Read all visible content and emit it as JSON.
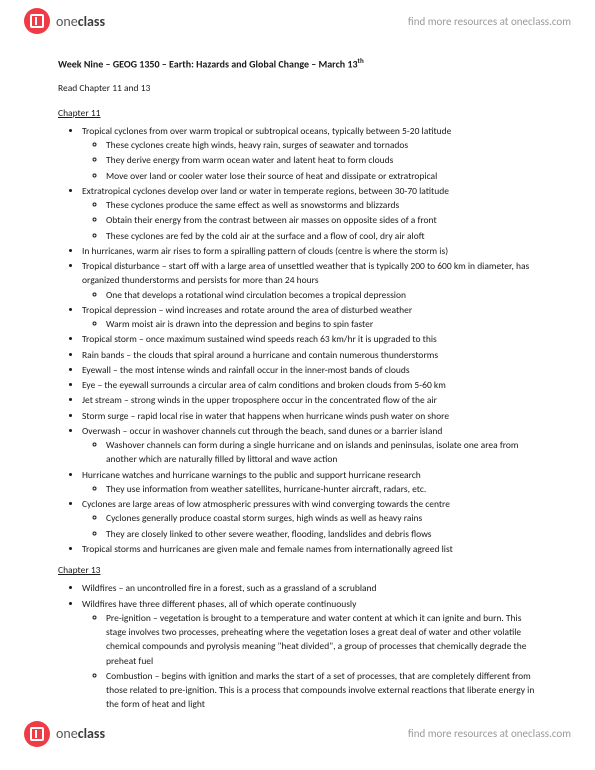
{
  "brand_prefix": "one",
  "brand_suffix": "class",
  "tagline": "find more resources at oneclass.com",
  "title_line": "Week Nine – GEOG 1350 – Earth: Hazards and Global Change – March 13",
  "title_suffix": "th",
  "instruction": "Read Chapter 11 and 13",
  "chapter11_label": "Chapter 11",
  "chapter13_label": "Chapter 13",
  "ch11": [
    {
      "text": "Tropical cyclones from over warm tropical or subtropical oceans, typically between 5-20 latitude",
      "sub": [
        "These cyclones create high winds, heavy rain, surges of seawater and tornados",
        "They derive energy from warm ocean water and latent heat to form clouds",
        "Move over land or cooler water lose their source of heat and dissipate or extratropical"
      ]
    },
    {
      "text": "Extratropical cyclones develop over land or water in temperate regions, between 30-70 latitude",
      "sub": [
        "These cyclones produce the same effect as well as snowstorms and blizzards",
        "Obtain their energy from the contrast between air masses on opposite sides of a front",
        "These cyclones are fed by the cold air at the surface and a flow of cool, dry air aloft"
      ]
    },
    {
      "text": "In hurricanes, warm air rises to form a spiralling pattern of clouds (centre is where the storm is)"
    },
    {
      "text": "Tropical disturbance – start off with a large area of unsettled weather that is typically 200 to 600 km in diameter, has organized thunderstorms and persists for more than 24 hours",
      "sub": [
        "One that develops a rotational wind circulation becomes a tropical depression"
      ]
    },
    {
      "text": "Tropical depression – wind increases and rotate around the area of disturbed weather",
      "sub": [
        "Warm moist air is drawn into the depression and begins to spin faster"
      ]
    },
    {
      "text": "Tropical storm – once maximum sustained wind speeds reach 63 km/hr it is upgraded to this"
    },
    {
      "text": "Rain bands – the clouds that spiral around a hurricane and contain numerous thunderstorms"
    },
    {
      "text": "Eyewall – the most intense winds and rainfall occur in the inner-most bands of clouds"
    },
    {
      "text": "Eye – the eyewall surrounds a circular area of calm conditions and broken clouds from 5-60 km"
    },
    {
      "text": "Jet stream – strong winds in the upper troposphere occur in the concentrated flow of the air"
    },
    {
      "text": "Storm surge – rapid local rise in water that happens when hurricane winds push water on shore"
    },
    {
      "text": "Overwash – occur in washover channels cut through the beach, sand dunes or a barrier island",
      "sub": [
        "Washover channels can form during a single hurricane and on islands and peninsulas, isolate one area from another which are naturally filled by littoral and wave action"
      ]
    },
    {
      "text": "Hurricane watches and hurricane warnings to the public and support hurricane research",
      "sub": [
        "They use information from weather satellites, hurricane-hunter aircraft, radars, etc."
      ]
    },
    {
      "text": "Cyclones are large areas of low atmospheric pressures with wind converging towards the centre",
      "sub": [
        "Cyclones generally produce coastal storm surges, high winds as well as heavy rains",
        "They are closely linked to other severe weather, flooding, landslides and debris flows"
      ]
    },
    {
      "text": "Tropical storms and hurricanes are given male and female names from internationally agreed list"
    }
  ],
  "ch13": [
    {
      "text": "Wildfires – an uncontrolled fire in a forest, such as a grassland of a scrubland"
    },
    {
      "text": "Wildfires have three different phases, all of which operate continuously",
      "sub": [
        "Pre-ignition – vegetation is brought to a temperature and water content at which it can ignite and burn. This stage involves two processes, preheating where the vegetation loses a great deal of water and other volatile chemical compounds and pyrolysis meaning \"heat divided\", a group of processes that chemically degrade the preheat fuel",
        "Combustion – begins with ignition and marks the start of a set of processes, that are completely different from those related to pre-ignition. This is a process that compounds involve external reactions that liberate energy in the form of heat and light"
      ]
    }
  ],
  "colors": {
    "logo_bg": "#ef3b45",
    "text": "#1a1a1a",
    "brand_light": "#565656",
    "tagline": "#9a9a9a"
  }
}
